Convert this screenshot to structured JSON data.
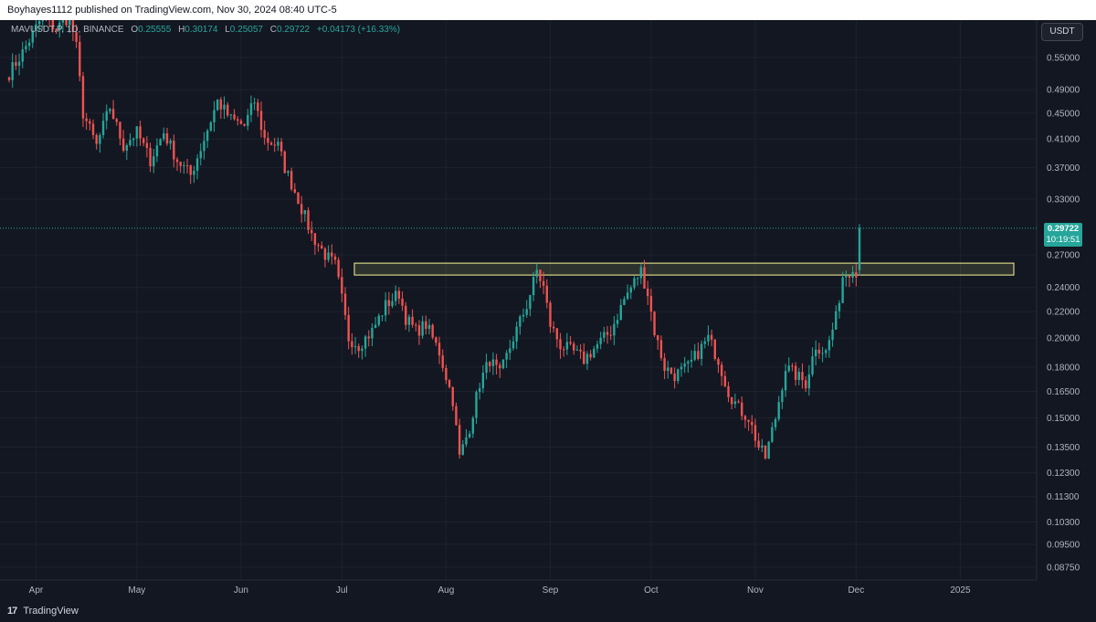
{
  "header": {
    "published": "Boyhayes1112 published on TradingView.com, Nov 30, 2024 08:40 UTC-5"
  },
  "legend": {
    "symbol": "MAVUSDT.P, 1D, BINANCE",
    "open_label": "O",
    "open": "0.25555",
    "high_label": "H",
    "high": "0.30174",
    "low_label": "L",
    "low": "0.25057",
    "close_label": "C",
    "close": "0.29722",
    "change": "+0.04173 (+16.33%)"
  },
  "currency": "USDT",
  "price_tag": {
    "price": "0.29722",
    "countdown": "10:19:51"
  },
  "footer": {
    "logo": "17",
    "brand": "TradingView"
  },
  "colors": {
    "up": "#26a69a",
    "down": "#ef5350",
    "zone": "#f7f797",
    "background": "#131722"
  },
  "chart_data": {
    "type": "candlestick",
    "scale": "log",
    "y_ticks": [
      "0.55000",
      "0.49000",
      "0.45000",
      "0.41000",
      "0.37000",
      "0.33000",
      "0.27000",
      "0.24000",
      "0.22000",
      "0.20000",
      "0.18000",
      "0.16500",
      "0.15000",
      "0.13500",
      "0.12300",
      "0.11300",
      "0.10300",
      "0.09500",
      "0.08750"
    ],
    "x_ticks": [
      {
        "label": "Apr",
        "day": 8
      },
      {
        "label": "May",
        "day": 38
      },
      {
        "label": "Jun",
        "day": 69
      },
      {
        "label": "Jul",
        "day": 99
      },
      {
        "label": "Aug",
        "day": 130
      },
      {
        "label": "Sep",
        "day": 161
      },
      {
        "label": "Oct",
        "day": 191
      },
      {
        "label": "Nov",
        "day": 222
      },
      {
        "label": "Dec",
        "day": 252
      },
      {
        "label": "2025",
        "day": 283
      }
    ],
    "zone": {
      "low": 0.251,
      "high": 0.262
    },
    "last_price": 0.29722,
    "keypoints": [
      [
        0,
        0.52
      ],
      [
        4,
        0.56
      ],
      [
        10,
        0.64
      ],
      [
        14,
        0.61
      ],
      [
        18,
        0.64
      ],
      [
        20,
        0.57
      ],
      [
        22,
        0.45
      ],
      [
        26,
        0.4
      ],
      [
        30,
        0.46
      ],
      [
        34,
        0.4
      ],
      [
        38,
        0.42
      ],
      [
        42,
        0.38
      ],
      [
        46,
        0.42
      ],
      [
        50,
        0.38
      ],
      [
        54,
        0.36
      ],
      [
        58,
        0.41
      ],
      [
        62,
        0.47
      ],
      [
        66,
        0.44
      ],
      [
        70,
        0.43
      ],
      [
        73,
        0.47
      ],
      [
        76,
        0.41
      ],
      [
        80,
        0.4
      ],
      [
        82,
        0.37
      ],
      [
        86,
        0.33
      ],
      [
        90,
        0.29
      ],
      [
        94,
        0.27
      ],
      [
        97,
        0.26
      ],
      [
        99,
        0.23
      ],
      [
        101,
        0.2
      ],
      [
        104,
        0.195
      ],
      [
        108,
        0.205
      ],
      [
        112,
        0.225
      ],
      [
        116,
        0.235
      ],
      [
        118,
        0.215
      ],
      [
        121,
        0.205
      ],
      [
        124,
        0.21
      ],
      [
        128,
        0.19
      ],
      [
        132,
        0.16
      ],
      [
        134,
        0.13
      ],
      [
        137,
        0.145
      ],
      [
        140,
        0.17
      ],
      [
        143,
        0.185
      ],
      [
        146,
        0.175
      ],
      [
        150,
        0.2
      ],
      [
        154,
        0.225
      ],
      [
        157,
        0.255
      ],
      [
        159,
        0.24
      ],
      [
        161,
        0.21
      ],
      [
        164,
        0.195
      ],
      [
        168,
        0.19
      ],
      [
        171,
        0.185
      ],
      [
        175,
        0.195
      ],
      [
        179,
        0.205
      ],
      [
        183,
        0.23
      ],
      [
        186,
        0.245
      ],
      [
        188,
        0.255
      ],
      [
        190,
        0.235
      ],
      [
        192,
        0.205
      ],
      [
        195,
        0.18
      ],
      [
        198,
        0.175
      ],
      [
        202,
        0.18
      ],
      [
        205,
        0.19
      ],
      [
        208,
        0.2
      ],
      [
        211,
        0.185
      ],
      [
        214,
        0.165
      ],
      [
        217,
        0.155
      ],
      [
        220,
        0.15
      ],
      [
        223,
        0.135
      ],
      [
        225,
        0.13
      ],
      [
        228,
        0.15
      ],
      [
        231,
        0.18
      ],
      [
        234,
        0.175
      ],
      [
        237,
        0.17
      ],
      [
        240,
        0.195
      ],
      [
        243,
        0.19
      ],
      [
        246,
        0.215
      ],
      [
        248,
        0.25
      ],
      [
        250,
        0.255
      ],
      [
        251,
        0.26
      ],
      [
        252,
        0.25
      ],
      [
        253,
        0.2972
      ]
    ],
    "last_candle": {
      "open": 0.25555,
      "high": 0.30174,
      "low": 0.25057,
      "close": 0.29722
    }
  }
}
